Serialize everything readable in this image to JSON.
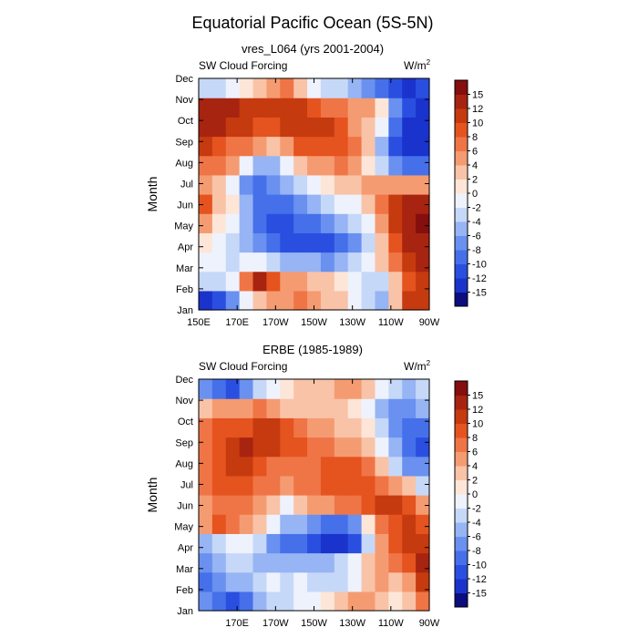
{
  "chart_data": {
    "type": "heatmap",
    "title": "Equatorial Pacific Ocean (5S-5N)",
    "colorbar": {
      "colors": [
        "#0d0d7f",
        "#1a33cc",
        "#2a4fe0",
        "#4570ea",
        "#6a90f0",
        "#97b4f4",
        "#c6d8f8",
        "#eef2fd",
        "#fde6d8",
        "#f9c3a8",
        "#f59b72",
        "#ef7546",
        "#e5531f",
        "#c63a0f",
        "#a72410",
        "#850e0e"
      ],
      "labels": [
        "-15",
        "-12",
        "-10",
        "-8",
        "-6",
        "-4",
        "-2",
        "0",
        "2",
        "4",
        "6",
        "8",
        "10",
        "12",
        "15"
      ]
    },
    "panels": [
      {
        "name": "model",
        "subtitle": "vres_L064 (yrs 2001-2004)",
        "left_label": "SW Cloud Forcing",
        "units": "W/m",
        "units_sup": "2",
        "ylabel": "Month",
        "y_ticks": [
          "Jan",
          "Feb",
          "Mar",
          "Apr",
          "May",
          "Jun",
          "Jul",
          "Aug",
          "Sep",
          "Oct",
          "Nov",
          "Dec"
        ],
        "x_ticks": [
          "150E",
          "170E",
          "170W",
          "150W",
          "130W",
          "110W",
          "90W"
        ],
        "x_range": [
          150,
          270
        ],
        "values": [
          [
            -13,
            -12,
            -8,
            -2,
            2,
            4,
            4,
            6,
            4,
            2,
            2,
            -2,
            -4,
            -6,
            2,
            10,
            10
          ],
          [
            -4,
            -4,
            -2,
            6,
            12,
            8,
            4,
            4,
            2,
            2,
            0,
            -2,
            -4,
            -4,
            2,
            8,
            10
          ],
          [
            -2,
            -2,
            -4,
            -2,
            -2,
            -4,
            -6,
            -6,
            -6,
            -8,
            -6,
            -4,
            -2,
            2,
            6,
            10,
            12
          ],
          [
            0,
            -2,
            -4,
            -6,
            -8,
            -10,
            -12,
            -12,
            -12,
            -12,
            -10,
            -8,
            -4,
            2,
            8,
            12,
            13
          ],
          [
            4,
            0,
            -2,
            -6,
            -10,
            -12,
            -12,
            -10,
            -10,
            -8,
            -6,
            -4,
            -2,
            4,
            10,
            14,
            15
          ],
          [
            8,
            2,
            0,
            -6,
            -10,
            -10,
            -10,
            -8,
            -6,
            -4,
            -2,
            -2,
            2,
            6,
            10,
            12,
            14
          ],
          [
            4,
            2,
            -2,
            -8,
            -10,
            -8,
            -6,
            -4,
            -2,
            0,
            2,
            2,
            4,
            4,
            4,
            4,
            4
          ],
          [
            6,
            6,
            4,
            -2,
            -6,
            -6,
            -2,
            2,
            4,
            4,
            6,
            4,
            0,
            -4,
            -8,
            -10,
            -10
          ],
          [
            10,
            8,
            6,
            6,
            4,
            2,
            4,
            8,
            8,
            8,
            8,
            6,
            2,
            -6,
            -12,
            -14,
            -15
          ],
          [
            12,
            12,
            10,
            10,
            8,
            8,
            10,
            10,
            10,
            10,
            8,
            4,
            2,
            -2,
            -10,
            -14,
            -15
          ],
          [
            14,
            13,
            12,
            10,
            10,
            10,
            10,
            10,
            8,
            6,
            6,
            4,
            4,
            0,
            -8,
            -12,
            -14
          ],
          [
            -4,
            -4,
            -2,
            0,
            2,
            4,
            6,
            2,
            -2,
            -4,
            -4,
            -6,
            -8,
            -10,
            -12,
            -13,
            -12
          ]
        ]
      },
      {
        "name": "obs",
        "subtitle": "ERBE (1985-1989)",
        "left_label": "SW Cloud Forcing",
        "units": "W/m",
        "units_sup": "2",
        "ylabel": "Month",
        "y_ticks": [
          "Jan",
          "Feb",
          "Mar",
          "Apr",
          "May",
          "Jun",
          "Jul",
          "Aug",
          "Sep",
          "Oct",
          "Nov",
          "Dec"
        ],
        "x_ticks": [
          "170E",
          "170W",
          "150W",
          "130W",
          "110W",
          "90W"
        ],
        "x_range": [
          150,
          270
        ],
        "values": [
          [
            -8,
            -10,
            -12,
            -10,
            -6,
            -4,
            -4,
            -2,
            -2,
            0,
            2,
            4,
            4,
            2,
            0,
            2,
            6
          ],
          [
            -10,
            -8,
            -6,
            -6,
            -4,
            -2,
            -4,
            -2,
            -4,
            -4,
            -4,
            -2,
            2,
            4,
            2,
            4,
            10
          ],
          [
            -8,
            -6,
            -4,
            -4,
            -6,
            -6,
            -6,
            -6,
            -6,
            -6,
            -4,
            -2,
            2,
            4,
            6,
            8,
            12
          ],
          [
            -6,
            -4,
            -2,
            -2,
            -4,
            -8,
            -10,
            -10,
            -12,
            -14,
            -14,
            -12,
            -4,
            4,
            8,
            10,
            10
          ],
          [
            4,
            8,
            6,
            4,
            2,
            -2,
            -6,
            -6,
            -8,
            -10,
            -10,
            -8,
            0,
            6,
            8,
            10,
            8
          ],
          [
            4,
            6,
            6,
            6,
            4,
            2,
            -2,
            2,
            4,
            4,
            6,
            6,
            8,
            10,
            10,
            8,
            4
          ],
          [
            6,
            8,
            8,
            8,
            6,
            6,
            4,
            6,
            6,
            8,
            8,
            8,
            8,
            6,
            4,
            2,
            -4
          ],
          [
            6,
            8,
            10,
            10,
            8,
            6,
            6,
            6,
            6,
            8,
            8,
            8,
            6,
            2,
            -4,
            -8,
            -8
          ],
          [
            6,
            8,
            10,
            12,
            10,
            10,
            8,
            8,
            6,
            6,
            4,
            4,
            2,
            -2,
            -6,
            -10,
            -12
          ],
          [
            6,
            8,
            8,
            8,
            10,
            10,
            8,
            6,
            4,
            4,
            2,
            2,
            0,
            -4,
            -8,
            -10,
            -10
          ],
          [
            2,
            4,
            4,
            4,
            6,
            4,
            2,
            2,
            2,
            2,
            2,
            0,
            -2,
            -6,
            -8,
            -8,
            -6
          ],
          [
            -8,
            -10,
            -12,
            -8,
            -4,
            -2,
            0,
            2,
            2,
            2,
            4,
            4,
            2,
            -2,
            -4,
            -6,
            -4
          ]
        ]
      }
    ]
  }
}
